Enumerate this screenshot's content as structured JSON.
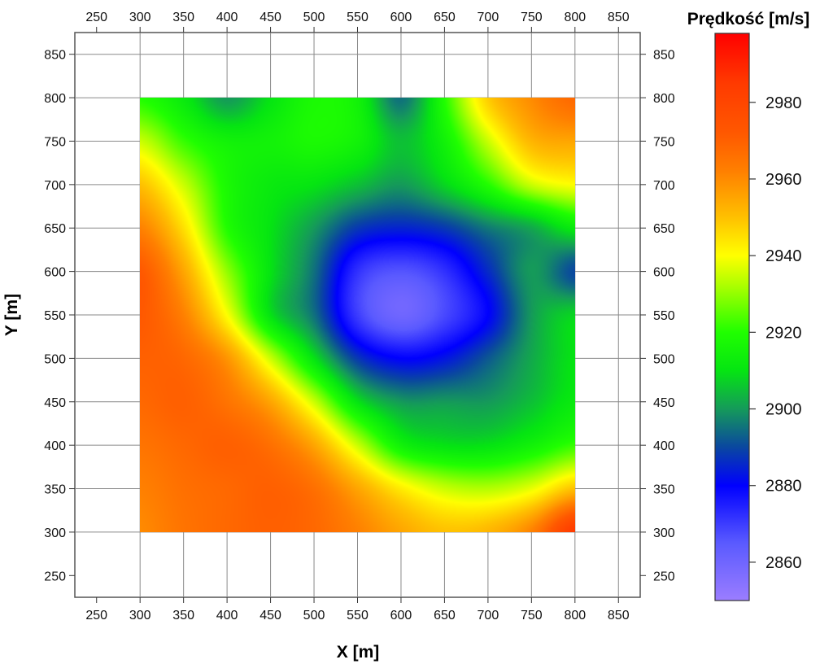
{
  "chart_data": {
    "type": "heatmap",
    "xlabel": "X [m]",
    "ylabel": "Y [m]",
    "xlim": [
      225,
      875
    ],
    "ylim": [
      225,
      875
    ],
    "x_ticks": [
      250,
      300,
      350,
      400,
      450,
      500,
      550,
      600,
      650,
      700,
      750,
      800,
      850
    ],
    "y_ticks": [
      250,
      300,
      350,
      400,
      450,
      500,
      550,
      600,
      650,
      700,
      750,
      800,
      850
    ],
    "data_extent": {
      "x": [
        300,
        800
      ],
      "y": [
        300,
        800
      ]
    },
    "grid": true,
    "grid_x": [
      300,
      350,
      400,
      450,
      500,
      550,
      600,
      650,
      700,
      750,
      800,
      850
    ],
    "grid_y": [
      300,
      350,
      400,
      450,
      500,
      550,
      600,
      650,
      700,
      750,
      800,
      850
    ],
    "grid_values": {
      "x": [
        300,
        350,
        400,
        450,
        500,
        550,
        600,
        650,
        700,
        750,
        800
      ],
      "y": [
        300,
        350,
        400,
        450,
        500,
        550,
        600,
        650,
        700,
        750,
        800
      ],
      "z": [
        [
          2960,
          2965,
          2968,
          2970,
          2968,
          2962,
          2955,
          2950,
          2952,
          2962,
          2985
        ],
        [
          2962,
          2966,
          2968,
          2970,
          2966,
          2955,
          2943,
          2935,
          2933,
          2938,
          2950
        ],
        [
          2965,
          2968,
          2970,
          2966,
          2955,
          2935,
          2915,
          2910,
          2910,
          2915,
          2922
        ],
        [
          2968,
          2970,
          2965,
          2955,
          2935,
          2910,
          2900,
          2900,
          2900,
          2905,
          2912
        ],
        [
          2970,
          2968,
          2958,
          2935,
          2910,
          2888,
          2880,
          2883,
          2892,
          2902,
          2910
        ],
        [
          2972,
          2962,
          2940,
          2910,
          2895,
          2870,
          2860,
          2868,
          2880,
          2900,
          2908
        ],
        [
          2972,
          2955,
          2930,
          2910,
          2895,
          2872,
          2866,
          2872,
          2886,
          2900,
          2890
        ],
        [
          2962,
          2945,
          2920,
          2910,
          2900,
          2888,
          2885,
          2888,
          2896,
          2902,
          2912
        ],
        [
          2950,
          2935,
          2918,
          2912,
          2910,
          2905,
          2900,
          2908,
          2920,
          2935,
          2940
        ],
        [
          2935,
          2922,
          2915,
          2915,
          2918,
          2915,
          2905,
          2915,
          2935,
          2952,
          2955
        ],
        [
          2920,
          2912,
          2900,
          2910,
          2918,
          2915,
          2895,
          2920,
          2948,
          2960,
          2968
        ]
      ]
    },
    "colorbar": {
      "title": "Prędkość [m/s]",
      "min": 2850,
      "max": 2998,
      "ticks": [
        2860,
        2880,
        2900,
        2920,
        2940,
        2960,
        2980
      ],
      "stops": [
        {
          "value": 2850,
          "color": "#9b7dff"
        },
        {
          "value": 2865,
          "color": "#5a5aff"
        },
        {
          "value": 2880,
          "color": "#0000ff"
        },
        {
          "value": 2890,
          "color": "#0a47a0"
        },
        {
          "value": 2900,
          "color": "#159a5a"
        },
        {
          "value": 2910,
          "color": "#05e512"
        },
        {
          "value": 2920,
          "color": "#20ff00"
        },
        {
          "value": 2932,
          "color": "#aaff00"
        },
        {
          "value": 2940,
          "color": "#ffff00"
        },
        {
          "value": 2950,
          "color": "#ffc000"
        },
        {
          "value": 2962,
          "color": "#ff8000"
        },
        {
          "value": 2972,
          "color": "#ff5800"
        },
        {
          "value": 2985,
          "color": "#ff3a00"
        },
        {
          "value": 2998,
          "color": "#ff0000"
        }
      ]
    }
  }
}
